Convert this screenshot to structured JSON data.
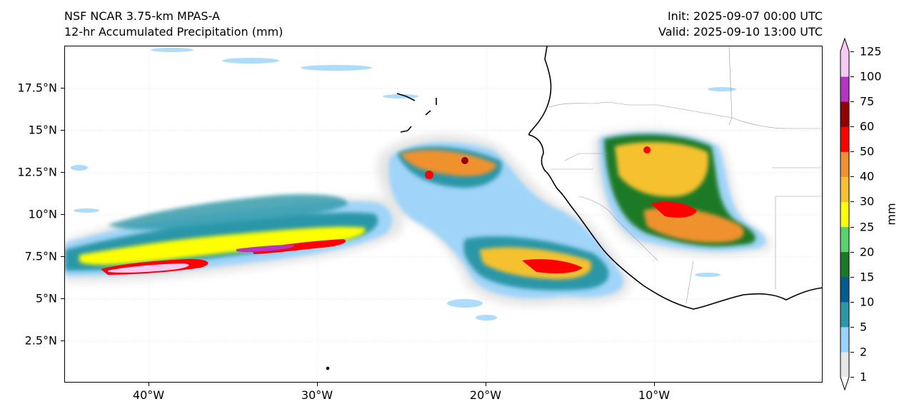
{
  "header": {
    "title_line1": "NSF NCAR 3.75-km MPAS-A",
    "title_line2": "12-hr Accumulated Precipitation (mm)",
    "init_label": "Init: 2025-09-07 00:00 UTC",
    "valid_label": "Valid: 2025-09-10 13:00 UTC"
  },
  "map": {
    "lon_range": [
      -45,
      0
    ],
    "lat_range": [
      0,
      20
    ],
    "lat_ticks": [
      {
        "value": 17.5,
        "label": "17.5°N"
      },
      {
        "value": 15,
        "label": "15°N"
      },
      {
        "value": 12.5,
        "label": "12.5°N"
      },
      {
        "value": 10,
        "label": "10°N"
      },
      {
        "value": 7.5,
        "label": "7.5°N"
      },
      {
        "value": 5,
        "label": "5°N"
      },
      {
        "value": 2.5,
        "label": "2.5°N"
      }
    ],
    "lon_ticks": [
      {
        "value": -40,
        "label": "40°W"
      },
      {
        "value": -30,
        "label": "30°W"
      },
      {
        "value": -20,
        "label": "20°W"
      },
      {
        "value": -10,
        "label": "10°W"
      }
    ],
    "precip_cells": [
      {
        "lon": -42.5,
        "lat": 6.9,
        "level": 4
      },
      {
        "lon": -38.0,
        "lat": 7.2,
        "level": 4
      },
      {
        "lon": -34.0,
        "lat": 7.8,
        "level": 4
      },
      {
        "lon": -30.0,
        "lat": 8.3,
        "level": 4
      },
      {
        "lon": -27.0,
        "lat": 8.6,
        "level": 3
      },
      {
        "lon": -33.0,
        "lat": 10.2,
        "level": 3
      },
      {
        "lon": -22.0,
        "lat": 12.8,
        "level": 4
      },
      {
        "lon": -21.5,
        "lat": 13.8,
        "level": 3
      },
      {
        "lon": -17.0,
        "lat": 7.8,
        "level": 4
      },
      {
        "lon": -15.0,
        "lat": 6.2,
        "level": 4
      },
      {
        "lon": -11.0,
        "lat": 13.5,
        "level": 4
      },
      {
        "lon": -9.0,
        "lat": 10.0,
        "level": 4
      },
      {
        "lon": -6.0,
        "lat": 8.8,
        "level": 3
      },
      {
        "lon": -13.0,
        "lat": 6.8,
        "level": 3
      }
    ]
  },
  "colorbar": {
    "unit": "mm",
    "levels": [
      "1",
      "2",
      "5",
      "10",
      "15",
      "20",
      "25",
      "30",
      "40",
      "50",
      "60",
      "75",
      "100",
      "125"
    ],
    "colors": [
      "#e6e6e6",
      "#99d3fb",
      "#2b97a8",
      "#005d91",
      "#1b7a28",
      "#58d26a",
      "#ffff00",
      "#f5c12e",
      "#ef922d",
      "#ff0000",
      "#930000",
      "#b535c2",
      "#f9c9f6"
    ]
  }
}
